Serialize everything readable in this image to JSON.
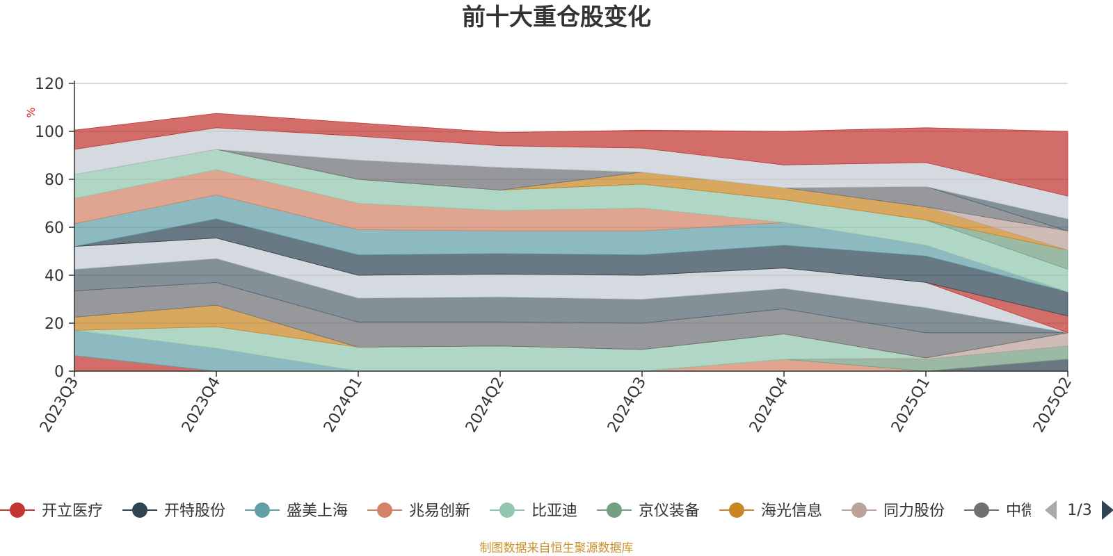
{
  "title": "前十大重仓股变化",
  "unit_label": "%",
  "source_note": "制图数据来自恒生聚源数据库",
  "legend_page": "1/3",
  "legend_items": [
    {
      "name": "开立医疗",
      "color": "#c23531"
    },
    {
      "name": "开特股份",
      "color": "#2f4554"
    },
    {
      "name": "盛美上海",
      "color": "#61a0a8"
    },
    {
      "name": "兆易创新",
      "color": "#d48265"
    },
    {
      "name": "比亚迪",
      "color": "#91c7ae"
    },
    {
      "name": "京仪装备",
      "color": "#749f83"
    },
    {
      "name": "海光信息",
      "color": "#ca8622"
    },
    {
      "name": "同力股份",
      "color": "#bda29a"
    },
    {
      "name": "中微公司",
      "color": "#6e7074"
    }
  ],
  "chart_data": {
    "type": "area",
    "stacked": true,
    "categories": [
      "2023Q3",
      "2023Q4",
      "2024Q1",
      "2024Q2",
      "2024Q3",
      "2024Q4",
      "2025Q1",
      "2025Q2"
    ],
    "ylim": [
      0,
      120
    ],
    "yticks": [
      0,
      20,
      40,
      60,
      80,
      100,
      120
    ],
    "grid": true,
    "bands": [
      {
        "color": "#91c7ae",
        "values": [
          0,
          0,
          0,
          0,
          0,
          0,
          0,
          0
        ]
      },
      {
        "color": "#2f4554",
        "values": [
          0,
          0,
          0,
          0,
          0,
          0,
          0,
          5
        ]
      },
      {
        "color": "#c23531",
        "values": [
          6.5,
          0,
          0,
          0,
          0,
          0,
          0,
          0
        ]
      },
      {
        "color": "#d48265",
        "values": [
          0,
          0,
          0,
          0,
          0,
          5,
          0,
          0
        ]
      },
      {
        "color": "#749f83",
        "values": [
          0,
          0,
          0,
          0,
          0,
          0,
          5,
          5.5
        ]
      },
      {
        "color": "#61a0a8",
        "values": [
          10.5,
          9.5,
          0,
          0,
          0,
          0,
          0,
          0
        ]
      },
      {
        "color": "#bda29a",
        "values": [
          0,
          0,
          0,
          0,
          0,
          0,
          0.5,
          5.5
        ]
      },
      {
        "color": "#91c7ae",
        "values": [
          0,
          9,
          10,
          10.5,
          9,
          10.5,
          0,
          0
        ]
      },
      {
        "color": "#ca8622",
        "values": [
          5.5,
          9,
          0,
          0,
          0,
          0,
          0,
          0
        ]
      },
      {
        "color": "#6e7074",
        "values": [
          11,
          9.5,
          10.5,
          10,
          11,
          10.5,
          10.5,
          0
        ]
      },
      {
        "color": "#546570",
        "values": [
          9,
          10,
          10,
          10.5,
          10,
          8.5,
          10.5,
          0
        ]
      },
      {
        "color": "#c4ccd3",
        "values": [
          9.5,
          8.5,
          9.5,
          9.5,
          10,
          8.5,
          10.5,
          0
        ]
      },
      {
        "color": "#c23531",
        "values": [
          0,
          0,
          0,
          0,
          0,
          0,
          0,
          7
        ]
      },
      {
        "color": "#2f4554",
        "values": [
          0,
          8,
          8.5,
          8.5,
          8.5,
          9.5,
          11,
          10
        ]
      },
      {
        "color": "#61a0a8",
        "values": [
          9.5,
          10,
          10.5,
          9.5,
          10,
          9.5,
          4.5,
          0
        ]
      },
      {
        "color": "#d48265",
        "values": [
          10.5,
          10.5,
          11,
          8.5,
          9.5,
          0,
          0,
          0
        ]
      },
      {
        "color": "#91c7ae",
        "values": [
          10,
          8.5,
          10,
          8.5,
          10,
          9.5,
          10.5,
          9.5
        ]
      },
      {
        "color": "#749f83",
        "values": [
          0,
          0,
          0,
          0,
          0,
          0,
          0,
          8
        ]
      },
      {
        "color": "#ca8622",
        "values": [
          0,
          0,
          0,
          0,
          5,
          5,
          5.5,
          0
        ]
      },
      {
        "color": "#bda29a",
        "values": [
          0,
          0,
          0,
          0,
          0,
          0,
          0,
          8
        ]
      },
      {
        "color": "#6e7074",
        "values": [
          0,
          0,
          8,
          9.5,
          0,
          0,
          8.5,
          0
        ]
      },
      {
        "color": "#546570",
        "values": [
          0,
          0,
          0,
          0,
          0,
          0,
          0,
          5
        ]
      },
      {
        "color": "#c4ccd3",
        "values": [
          10.5,
          9,
          10,
          9,
          10,
          9.5,
          10,
          9.5
        ]
      },
      {
        "color": "#c23531",
        "values": [
          8,
          6,
          5.5,
          5.5,
          7.5,
          14,
          14.5,
          27
        ]
      }
    ]
  }
}
